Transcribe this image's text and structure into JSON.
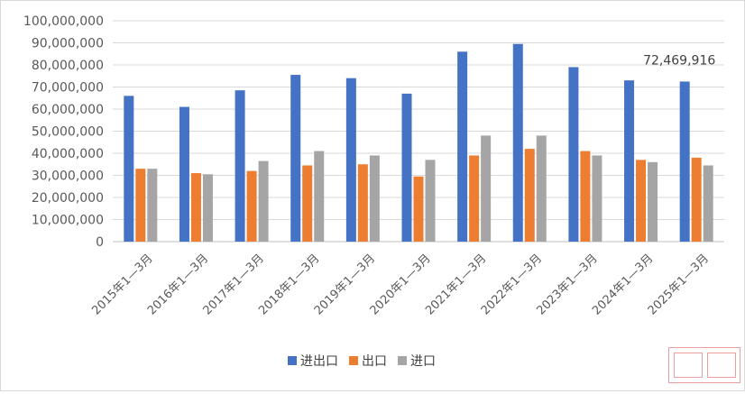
{
  "chart_data": {
    "type": "bar",
    "title": "",
    "xlabel": "",
    "ylabel": "",
    "categories": [
      "2015年1—3月",
      "2016年1—3月",
      "2017年1—3月",
      "2018年1—3月",
      "2019年1—3月",
      "2020年1—3月",
      "2021年1—3月",
      "2022年1—3月",
      "2023年1—3月",
      "2024年1—3月",
      "2025年1—3月"
    ],
    "series": [
      {
        "name": "进出口",
        "color": "#4472c4",
        "values": [
          66000000,
          61000000,
          68500000,
          75500000,
          74000000,
          67000000,
          86000000,
          89500000,
          79000000,
          73000000,
          72469916
        ]
      },
      {
        "name": "出口",
        "color": "#ed7d31",
        "values": [
          33000000,
          31000000,
          32000000,
          34500000,
          35000000,
          29500000,
          39000000,
          42000000,
          41000000,
          37000000,
          38000000
        ]
      },
      {
        "name": "进口",
        "color": "#a5a5a5",
        "values": [
          33000000,
          30500000,
          36500000,
          41000000,
          39000000,
          37000000,
          48000000,
          48000000,
          39000000,
          36000000,
          34500000
        ]
      }
    ],
    "ylim": [
      0,
      100000000
    ],
    "yticks": [
      "0",
      "10,000,000",
      "20,000,000",
      "30,000,000",
      "40,000,000",
      "50,000,000",
      "60,000,000",
      "70,000,000",
      "80,000,000",
      "90,000,000",
      "100,000,000"
    ],
    "data_label": {
      "series_index": 0,
      "category_index": 10,
      "text": "72,469,916"
    },
    "grid": true,
    "legend_position": "bottom"
  }
}
